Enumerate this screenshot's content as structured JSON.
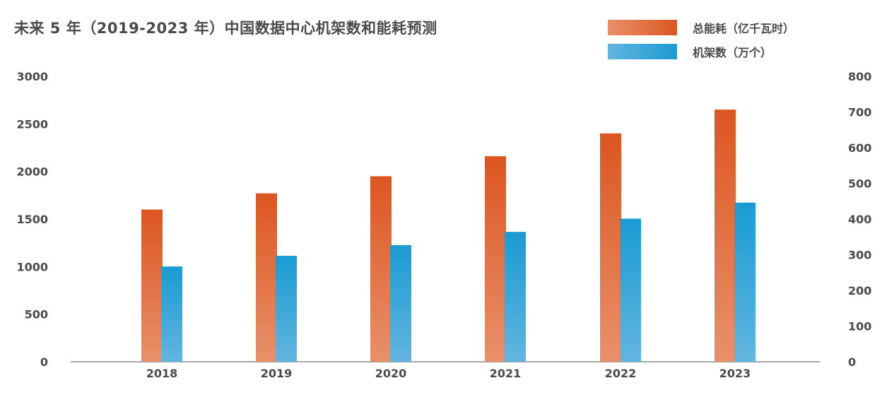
{
  "chart_data": {
    "type": "bar",
    "title": "未来 5 年（2019-2023 年）中国数据中心机架数和能耗预测",
    "categories": [
      "2018",
      "2019",
      "2020",
      "2021",
      "2022",
      "2023"
    ],
    "series": [
      {
        "name": "总能耗（亿千瓦时）",
        "axis": "left",
        "values": [
          1600,
          1770,
          1950,
          2160,
          2400,
          2650
        ],
        "color": "#DC5621"
      },
      {
        "name": "机架数（万个）",
        "axis": "right",
        "values": [
          267,
          297,
          327,
          364,
          401,
          446
        ],
        "color": "#1A9BD3"
      }
    ],
    "y_left": {
      "min": 0,
      "max": 3000,
      "ticks": [
        "0",
        "500",
        "1000",
        "1500",
        "2000",
        "2500",
        "3000"
      ]
    },
    "y_right": {
      "min": 0,
      "max": 800,
      "ticks": [
        "0",
        "100",
        "200",
        "300",
        "400",
        "500",
        "600",
        "700",
        "800"
      ]
    },
    "grid": false,
    "legend_position": "top-right"
  }
}
